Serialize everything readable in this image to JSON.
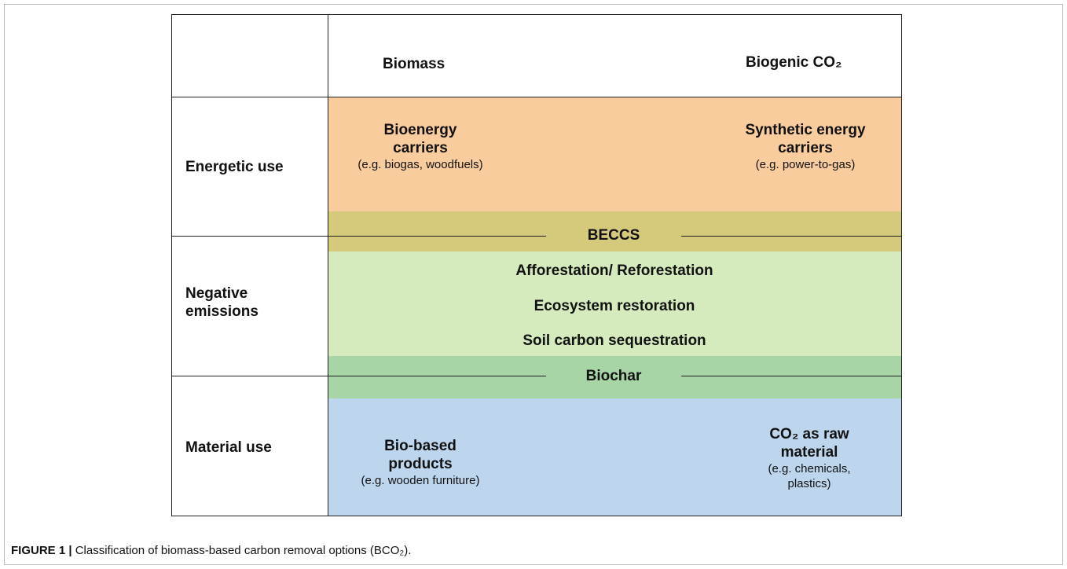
{
  "header": {
    "columns": [
      "Biomass",
      "Biogenic CO₂"
    ]
  },
  "rows": [
    {
      "label": "Energetic use"
    },
    {
      "label": "Negative emissions"
    },
    {
      "label": "Material use"
    }
  ],
  "energetic": {
    "left": {
      "title": "Bioenergy carriers",
      "note": "(e.g. biogas, woodfuels)"
    },
    "right": {
      "title": "Synthetic energy carriers",
      "note": "(e.g. power-to-gas)"
    }
  },
  "bands": [
    "BECCS",
    "Biochar"
  ],
  "negative": {
    "items": [
      "Afforestation/ Reforestation",
      "Ecosystem restoration",
      "Soil carbon sequestration"
    ]
  },
  "material": {
    "left": {
      "title": "Bio-based products",
      "note": "(e.g. wooden furniture)"
    },
    "right": {
      "title": "CO₂ as raw material",
      "note": "(e.g. chemicals, plastics)"
    }
  },
  "caption": {
    "label": "FIGURE 1 |",
    "text": "Classification of biomass-based carbon removal options (BCO₂)."
  }
}
